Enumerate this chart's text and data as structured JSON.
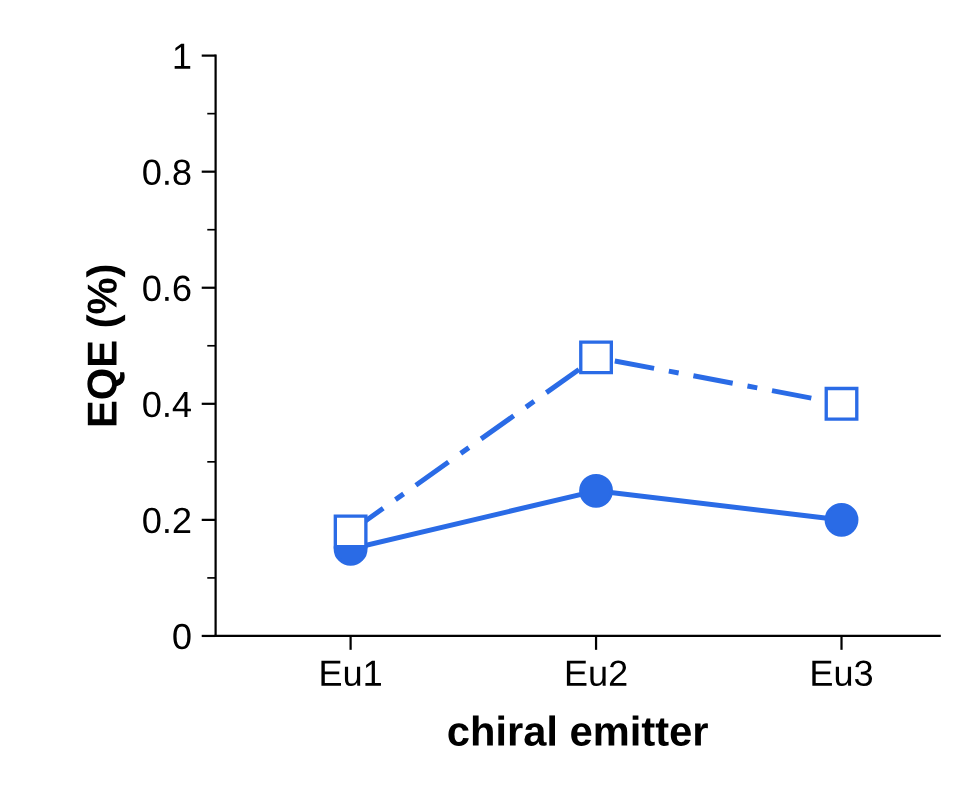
{
  "chart_data": {
    "type": "line",
    "xlabel": "chiral emitter",
    "ylabel": "EQE (%)",
    "categories": [
      "Eu1",
      "Eu2",
      "Eu3"
    ],
    "series": [
      {
        "color": "#2a6be6",
        "values": [
          0.15,
          0.25,
          0.2
        ],
        "marker": "circle",
        "line_style": "solid"
      },
      {
        "color": "#2a6be6",
        "values": [
          0.18,
          0.48,
          0.4
        ],
        "marker": "square",
        "line_style": "dashed"
      }
    ],
    "ylim": [
      0,
      1
    ],
    "yticks": [
      0,
      0.2,
      0.4,
      0.6,
      0.8,
      1
    ],
    "grid": false,
    "legend": false
  }
}
